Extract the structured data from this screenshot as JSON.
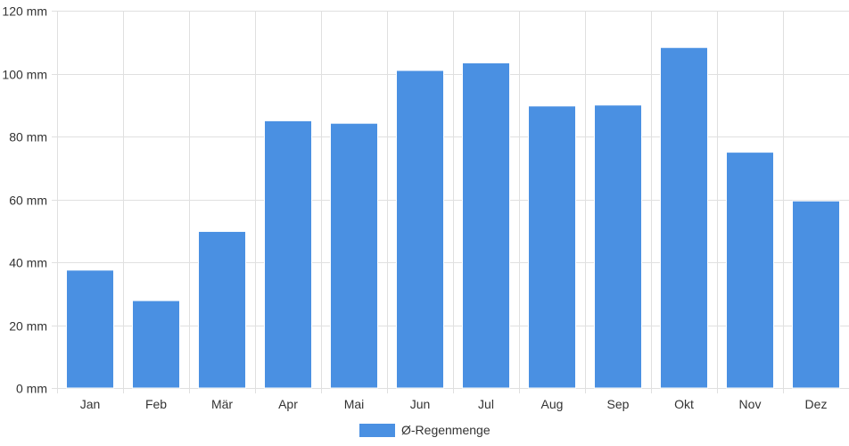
{
  "chart_data": {
    "type": "bar",
    "categories": [
      "Jan",
      "Feb",
      "Mär",
      "Apr",
      "Mai",
      "Jun",
      "Jul",
      "Aug",
      "Sep",
      "Okt",
      "Nov",
      "Dez"
    ],
    "series": [
      {
        "name": "Ø-Regenmenge",
        "values": [
          37.5,
          27.8,
          49.8,
          85,
          84.2,
          101,
          103.4,
          89.7,
          90,
          108.3,
          75,
          59.5
        ],
        "color": "#4a90e2"
      }
    ],
    "ylim": [
      0,
      120
    ],
    "yticks": [
      0,
      20,
      40,
      60,
      80,
      100,
      120
    ],
    "y_unit": "mm",
    "grid": true,
    "legend_position": "bottom-center"
  }
}
